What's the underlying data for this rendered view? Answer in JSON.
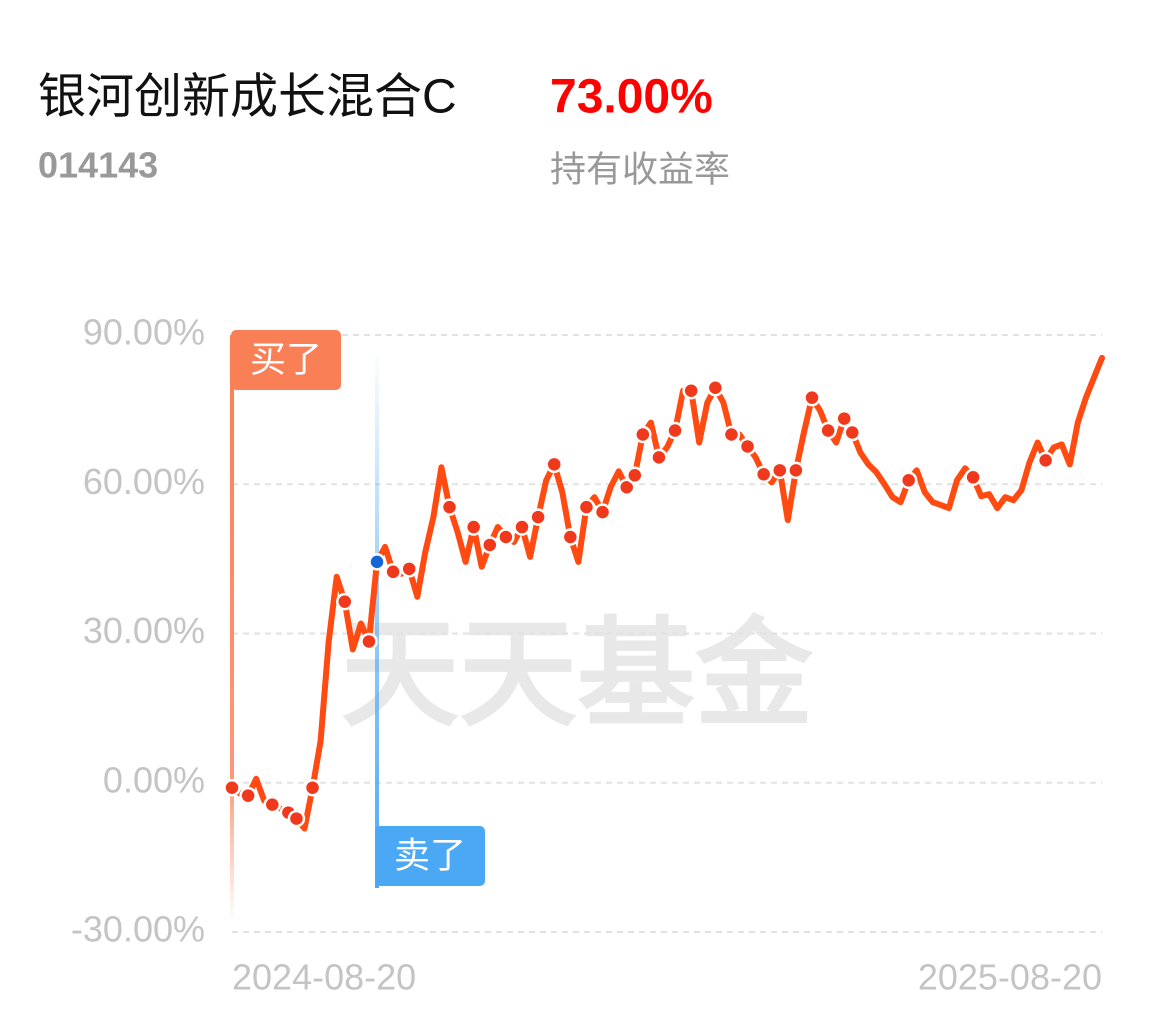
{
  "header": {
    "title": "银河创新成长混合C",
    "return": "73.00%",
    "code": "014143",
    "return_label": "持有收益率"
  },
  "chart_data": {
    "type": "line",
    "color": "#ff4a12",
    "watermark": "天天基金",
    "categories": [
      "2024-08-20",
      null,
      null,
      null,
      null,
      null,
      null,
      null,
      null,
      null,
      null,
      null,
      null,
      null,
      null,
      null,
      null,
      null,
      null,
      null,
      null,
      null,
      null,
      null,
      null,
      null,
      null,
      null,
      null,
      null,
      null,
      null,
      null,
      null,
      null,
      null,
      null,
      null,
      null,
      null,
      null,
      null,
      null,
      null,
      null,
      null,
      null,
      null,
      null,
      null,
      null,
      null,
      null,
      null,
      null,
      null,
      null,
      null,
      null,
      null,
      null,
      null,
      null,
      null,
      null,
      null,
      null,
      null,
      null,
      null,
      null,
      null,
      null,
      null,
      null,
      null,
      null,
      null,
      null,
      null,
      null,
      null,
      null,
      null,
      null,
      null,
      null,
      null,
      null,
      null,
      null,
      null,
      null,
      null,
      null,
      null,
      null,
      null,
      null,
      null,
      null,
      null,
      null,
      null,
      null,
      null,
      null,
      null,
      "2025-08-20"
    ],
    "values": [
      -1,
      -2.2,
      -2.6,
      0.8,
      -3.6,
      -4.4,
      -5.2,
      -6,
      -7.2,
      -9.2,
      -1,
      8.4,
      28.4,
      41.4,
      36.4,
      26.8,
      32,
      28.4,
      44.4,
      47.4,
      42.4,
      42,
      43,
      37.4,
      46.4,
      53.4,
      63.4,
      55.4,
      50.4,
      44.4,
      51.4,
      43.4,
      47.8,
      51.4,
      49.4,
      48.4,
      51.4,
      45.4,
      53.4,
      60.8,
      64,
      58.4,
      49.4,
      44.4,
      55.4,
      57.4,
      54.4,
      59.4,
      62.6,
      59.4,
      61.8,
      70,
      72.4,
      65.4,
      67.4,
      70.8,
      78.8,
      78.8,
      68.4,
      76.4,
      79.4,
      76.4,
      70,
      70,
      67.6,
      65.4,
      62,
      60.4,
      62.8,
      52.8,
      62.8,
      70.4,
      77.4,
      74.8,
      70.8,
      68.4,
      73.2,
      70.4,
      66.4,
      64,
      62.4,
      60,
      57.4,
      56.4,
      60.8,
      62.8,
      58.4,
      56.4,
      55.8,
      55.2,
      60.8,
      63.2,
      61.4,
      57.6,
      58,
      55.2,
      57.4,
      56.8,
      58.8,
      64.4,
      68.4,
      64.8,
      67.4,
      68,
      64,
      72.4,
      77.4,
      81.4,
      85.4
    ],
    "dots": {
      "color": "#f0381c",
      "values": [
        -1,
        null,
        -2.6,
        null,
        null,
        -4.4,
        null,
        -6,
        -7.2,
        null,
        -1,
        null,
        null,
        null,
        36.4,
        null,
        null,
        28.4,
        null,
        null,
        42.4,
        null,
        43,
        null,
        null,
        null,
        null,
        55.4,
        null,
        null,
        51.4,
        null,
        47.8,
        null,
        49.4,
        null,
        51.4,
        null,
        53.4,
        null,
        64,
        null,
        49.4,
        null,
        55.4,
        null,
        54.4,
        null,
        null,
        59.4,
        61.8,
        70,
        null,
        65.4,
        null,
        70.8,
        null,
        78.8,
        null,
        null,
        79.4,
        null,
        70,
        null,
        67.6,
        null,
        62,
        null,
        62.8,
        null,
        62.8,
        null,
        77.4,
        null,
        70.8,
        null,
        73.2,
        70.4,
        null,
        null,
        null,
        null,
        null,
        null,
        60.8,
        null,
        null,
        null,
        null,
        null,
        null,
        null,
        61.4,
        null,
        null,
        null,
        null,
        null,
        null,
        null,
        null,
        64.8,
        null,
        null,
        null,
        null,
        null,
        null,
        null
      ]
    },
    "annotations": [
      {
        "text": "买了",
        "index": 0,
        "color": "#f97f56"
      },
      {
        "text": "卖了",
        "index": 18,
        "color": "#4aa8f5"
      }
    ],
    "ylim": [
      -30,
      90
    ],
    "yticks": [
      {
        "value": -30,
        "label": "-30.00%"
      },
      {
        "value": 0,
        "label": "0.00%"
      },
      {
        "value": 30,
        "label": "30.00%"
      },
      {
        "value": 60,
        "label": "60.00%"
      },
      {
        "value": 90,
        "label": "90.00%"
      }
    ],
    "grid": true
  }
}
